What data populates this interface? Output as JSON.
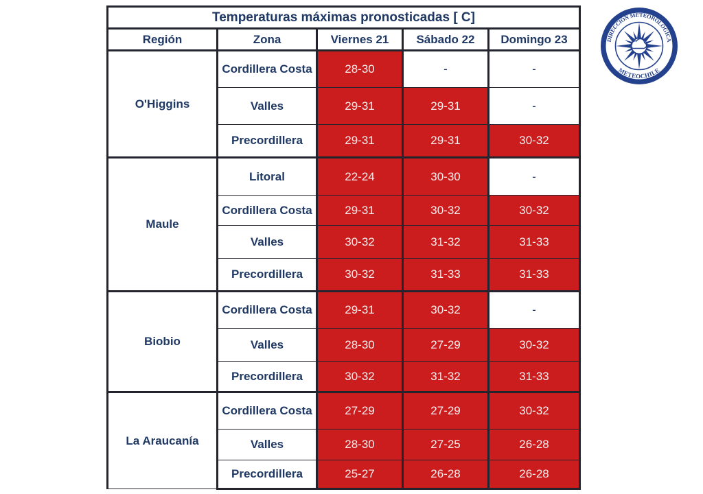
{
  "title": "Temperaturas máximas pronosticadas [ C]",
  "columns": [
    "Región",
    "Zona",
    "Viernes 21",
    "Sábado 22",
    "Domingo 23"
  ],
  "regions": [
    {
      "name": "O'Higgins",
      "rows": [
        {
          "zone": "Cordillera Costa",
          "values": [
            "28-30",
            "-",
            "-"
          ]
        },
        {
          "zone": "Valles",
          "values": [
            "29-31",
            "29-31",
            "-"
          ]
        },
        {
          "zone": "Precordillera",
          "values": [
            "29-31",
            "29-31",
            "30-32"
          ]
        }
      ]
    },
    {
      "name": "Maule",
      "rows": [
        {
          "zone": "Litoral",
          "values": [
            "22-24",
            "30-30",
            "-"
          ]
        },
        {
          "zone": "Cordillera Costa",
          "values": [
            "29-31",
            "30-32",
            "30-32"
          ]
        },
        {
          "zone": "Valles",
          "values": [
            "30-32",
            "31-32",
            "31-33"
          ]
        },
        {
          "zone": "Precordillera",
          "values": [
            "30-32",
            "31-33",
            "31-33"
          ]
        }
      ]
    },
    {
      "name": "Biobio",
      "rows": [
        {
          "zone": "Cordillera Costa",
          "values": [
            "29-31",
            "30-32",
            "-"
          ]
        },
        {
          "zone": "Valles",
          "values": [
            "28-30",
            "27-29",
            "30-32"
          ]
        },
        {
          "zone": "Precordillera",
          "values": [
            "30-32",
            "31-32",
            "31-33"
          ]
        }
      ]
    },
    {
      "name": "La Araucanía",
      "rows": [
        {
          "zone": "Cordillera Costa",
          "values": [
            "27-29",
            "27-29",
            "30-32"
          ]
        },
        {
          "zone": "Valles",
          "values": [
            "28-30",
            "27-25",
            "26-28"
          ]
        },
        {
          "zone": "Precordillera",
          "values": [
            "25-27",
            "26-28",
            "26-28"
          ]
        }
      ]
    }
  ],
  "colors": {
    "highlight": "#cb1d1d",
    "text": "#1f3864",
    "border": "#23242e",
    "value_text": "#f7efef",
    "logo_blue": "#24418d"
  },
  "logo": {
    "ring_text_top": "DIRECCIÓN METEOROLÓGICA",
    "ring_text_bottom": "METEOCHILE"
  }
}
